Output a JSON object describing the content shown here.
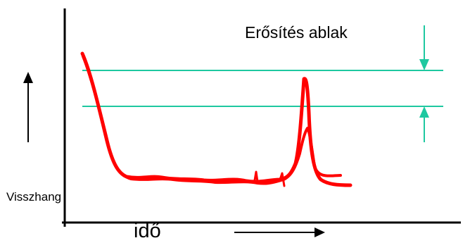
{
  "labels": {
    "window": "Erősítés ablak",
    "y_axis": "Visszhang",
    "x_axis": "idő"
  },
  "colors": {
    "axis": "#000000",
    "gain_window": "#1ec8a0",
    "echo_trace": "#ff0000",
    "background": "#ffffff"
  }
}
